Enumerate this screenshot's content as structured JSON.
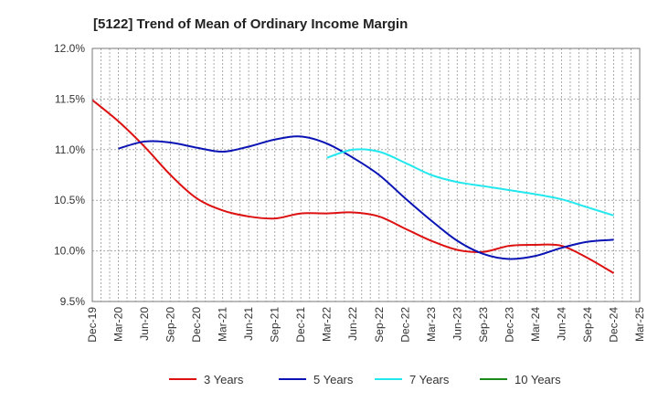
{
  "chart_data": {
    "type": "line",
    "title": "[5122]  Trend of Mean of Ordinary Income Margin",
    "xlabel": "",
    "ylabel": "",
    "categories": [
      "Dec-19",
      "Mar-20",
      "Jun-20",
      "Sep-20",
      "Dec-20",
      "Mar-21",
      "Jun-21",
      "Sep-21",
      "Dec-21",
      "Mar-22",
      "Jun-22",
      "Sep-22",
      "Dec-22",
      "Mar-23",
      "Jun-23",
      "Sep-23",
      "Dec-23",
      "Mar-24",
      "Jun-24",
      "Sep-24",
      "Dec-24",
      "Mar-25"
    ],
    "y_ticks": [
      "9.5%",
      "10.0%",
      "10.5%",
      "11.0%",
      "11.5%",
      "12.0%"
    ],
    "ylim": [
      9.5,
      12.0
    ],
    "grid": true,
    "legend_position": "bottom",
    "series": [
      {
        "name": "3 Years",
        "color": "#dd1111",
        "values": [
          11.49,
          11.28,
          11.03,
          10.75,
          10.52,
          10.4,
          10.34,
          10.32,
          10.37,
          10.37,
          10.38,
          10.34,
          10.22,
          10.1,
          10.01,
          9.99,
          10.05,
          10.06,
          10.05,
          9.93,
          9.78,
          null
        ]
      },
      {
        "name": "5 Years",
        "color": "#0a14b4",
        "values": [
          null,
          11.01,
          11.08,
          11.07,
          11.02,
          10.98,
          11.03,
          11.1,
          11.13,
          11.06,
          10.92,
          10.75,
          10.52,
          10.3,
          10.1,
          9.97,
          9.92,
          9.95,
          10.03,
          10.09,
          10.11,
          null
        ]
      },
      {
        "name": "7 Years",
        "color": "#22e8ee",
        "values": [
          null,
          null,
          null,
          null,
          null,
          null,
          null,
          null,
          null,
          10.92,
          11.0,
          10.98,
          10.87,
          10.75,
          10.68,
          10.64,
          10.6,
          10.56,
          10.51,
          10.43,
          10.35,
          null
        ]
      },
      {
        "name": "10 Years",
        "color": "#1a8a1a",
        "values": [
          null,
          null,
          null,
          null,
          null,
          null,
          null,
          null,
          null,
          null,
          null,
          null,
          null,
          null,
          null,
          null,
          null,
          null,
          null,
          null,
          null,
          null
        ]
      }
    ]
  }
}
